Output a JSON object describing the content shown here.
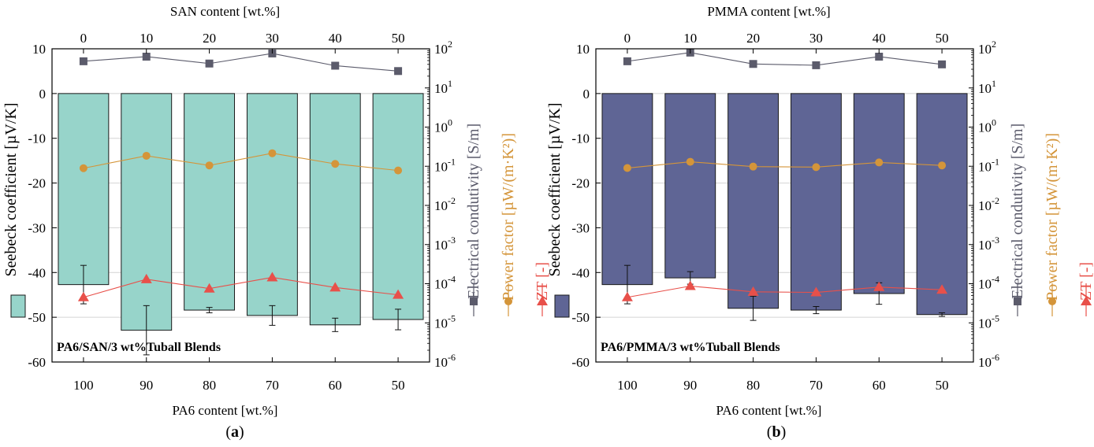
{
  "chart_data": [
    {
      "type": "bar",
      "panel_label": "a",
      "annotation": "PA6/SAN/3 wt%Tuball Blends",
      "bottom_axis": {
        "label": "PA6 content [wt.%]",
        "ticks": [
          "100",
          "90",
          "80",
          "70",
          "60",
          "50"
        ]
      },
      "top_axis": {
        "label": "SAN content [wt.%]",
        "ticks": [
          "0",
          "10",
          "20",
          "30",
          "40",
          "50"
        ]
      },
      "left_axis": {
        "label": "Seebeck coefficient [µV/K]",
        "ylim": [
          -60,
          10
        ],
        "ticks": [
          "10",
          "0",
          "-10",
          "-20",
          "-30",
          "-40",
          "-50",
          "-60"
        ]
      },
      "right_axis": {
        "scale": "log",
        "ylim": [
          1e-06,
          100
        ],
        "ticks": [
          {
            "base": "10",
            "exp": "2"
          },
          {
            "base": "10",
            "exp": "1"
          },
          {
            "base": "10",
            "exp": "0"
          },
          {
            "base": "10",
            "exp": "-1"
          },
          {
            "base": "10",
            "exp": "-2"
          },
          {
            "base": "10",
            "exp": "-3"
          },
          {
            "base": "10",
            "exp": "-4"
          },
          {
            "base": "10",
            "exp": "-5"
          },
          {
            "base": "10",
            "exp": "-6"
          }
        ]
      },
      "seebeck": {
        "color": "#97d4ca",
        "values": [
          -42.7,
          -52.9,
          -48.4,
          -49.6,
          -51.7,
          -50.5
        ],
        "errors": [
          4.3,
          5.5,
          0.6,
          2.2,
          1.5,
          2.3
        ]
      },
      "conductivity": {
        "name": "Electrical condutivity [S/m]",
        "color": "#5b5b6b",
        "values": [
          48,
          63,
          42,
          76,
          37,
          27
        ]
      },
      "power_factor": {
        "name": "Power factor [µW/(m·K²)]",
        "color": "#d4953a",
        "values": [
          0.089,
          0.185,
          0.105,
          0.215,
          0.115,
          0.078
        ]
      },
      "zt": {
        "name": "ZT [-]",
        "color": "#e8504a",
        "values": [
          4.5e-05,
          0.00013,
          7.5e-05,
          0.000145,
          8e-05,
          5.2e-05
        ]
      }
    },
    {
      "type": "bar",
      "panel_label": "b",
      "annotation": "PA6/PMMA/3 wt%Tuball Blends",
      "bottom_axis": {
        "label": "PA6 content [wt.%]",
        "ticks": [
          "100",
          "90",
          "80",
          "70",
          "60",
          "50"
        ]
      },
      "top_axis": {
        "label": "PMMA content [wt.%]",
        "ticks": [
          "0",
          "10",
          "20",
          "30",
          "40",
          "50"
        ]
      },
      "left_axis": {
        "label": "Seebeck coefficient [µV/K]",
        "ylim": [
          -60,
          10
        ],
        "ticks": [
          "10",
          "0",
          "-10",
          "-20",
          "-30",
          "-40",
          "-50",
          "-60"
        ]
      },
      "right_axis": {
        "scale": "log",
        "ylim": [
          1e-06,
          100
        ],
        "ticks": [
          {
            "base": "10",
            "exp": "2"
          },
          {
            "base": "10",
            "exp": "1"
          },
          {
            "base": "10",
            "exp": "0"
          },
          {
            "base": "10",
            "exp": "-1"
          },
          {
            "base": "10",
            "exp": "-2"
          },
          {
            "base": "10",
            "exp": "-3"
          },
          {
            "base": "10",
            "exp": "-4"
          },
          {
            "base": "10",
            "exp": "-5"
          },
          {
            "base": "10",
            "exp": "-6"
          }
        ]
      },
      "seebeck": {
        "color": "#5f6595",
        "values": [
          -42.7,
          -41.2,
          -48.0,
          -48.4,
          -44.7,
          -49.4
        ],
        "errors": [
          4.3,
          1.4,
          2.7,
          0.8,
          2.4,
          0.4
        ]
      },
      "conductivity": {
        "name": "Electrical condutivity [S/m]",
        "color": "#5b5b6b",
        "values": [
          48,
          80,
          41,
          38,
          63,
          40
        ]
      },
      "power_factor": {
        "name": "Power factor [µW/(m·K²)]",
        "color": "#d4953a",
        "values": [
          0.09,
          0.13,
          0.098,
          0.095,
          0.125,
          0.105
        ]
      },
      "zt": {
        "name": "ZT [-]",
        "color": "#e8504a",
        "values": [
          4.5e-05,
          8.7e-05,
          6.2e-05,
          6e-05,
          8.2e-05,
          7e-05
        ]
      }
    }
  ]
}
